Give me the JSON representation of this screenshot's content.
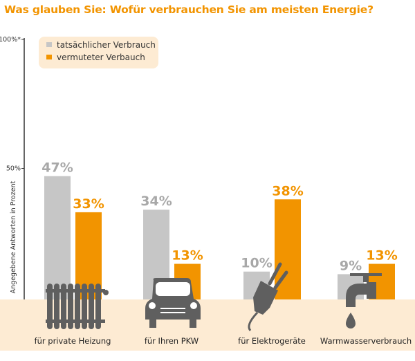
{
  "chart_data": {
    "type": "bar",
    "title": "Was glauben Sie: Wofür verbrauchen Sie am meisten Energie?",
    "ylabel": "Angegebene Antworten in Prozent",
    "ylim": [
      0,
      100
    ],
    "yticks": [
      "50%",
      "100%*"
    ],
    "yticks_values": [
      50,
      100
    ],
    "grid": false,
    "legend_position": "top-left",
    "categories": [
      "für private Heizung",
      "für Ihren PKW",
      "für Elektrogeräte",
      "Warmwasserverbrauch"
    ],
    "category_icons": [
      "radiator-icon",
      "car-icon",
      "plug-icon",
      "water-tap-icon"
    ],
    "series": [
      {
        "name": "tatsächlicher Verbrauch",
        "values": [
          47,
          34,
          10,
          9
        ],
        "labels": [
          "47%",
          "34%",
          "10%",
          "9%"
        ],
        "color": "#c6c6c6",
        "label_color": "#a8a8a8"
      },
      {
        "name": "vermuteter Verbauch",
        "values": [
          33,
          13,
          38,
          13
        ],
        "labels": [
          "33%",
          "13%",
          "38%",
          "13%"
        ],
        "color": "#f29400",
        "label_color": "#f29400"
      }
    ]
  },
  "colors": {
    "accent": "#f29400",
    "band": "#fdebd3",
    "legend_bg": "#fdebd3",
    "icon": "#5f5f5f",
    "axis": "#333333"
  }
}
